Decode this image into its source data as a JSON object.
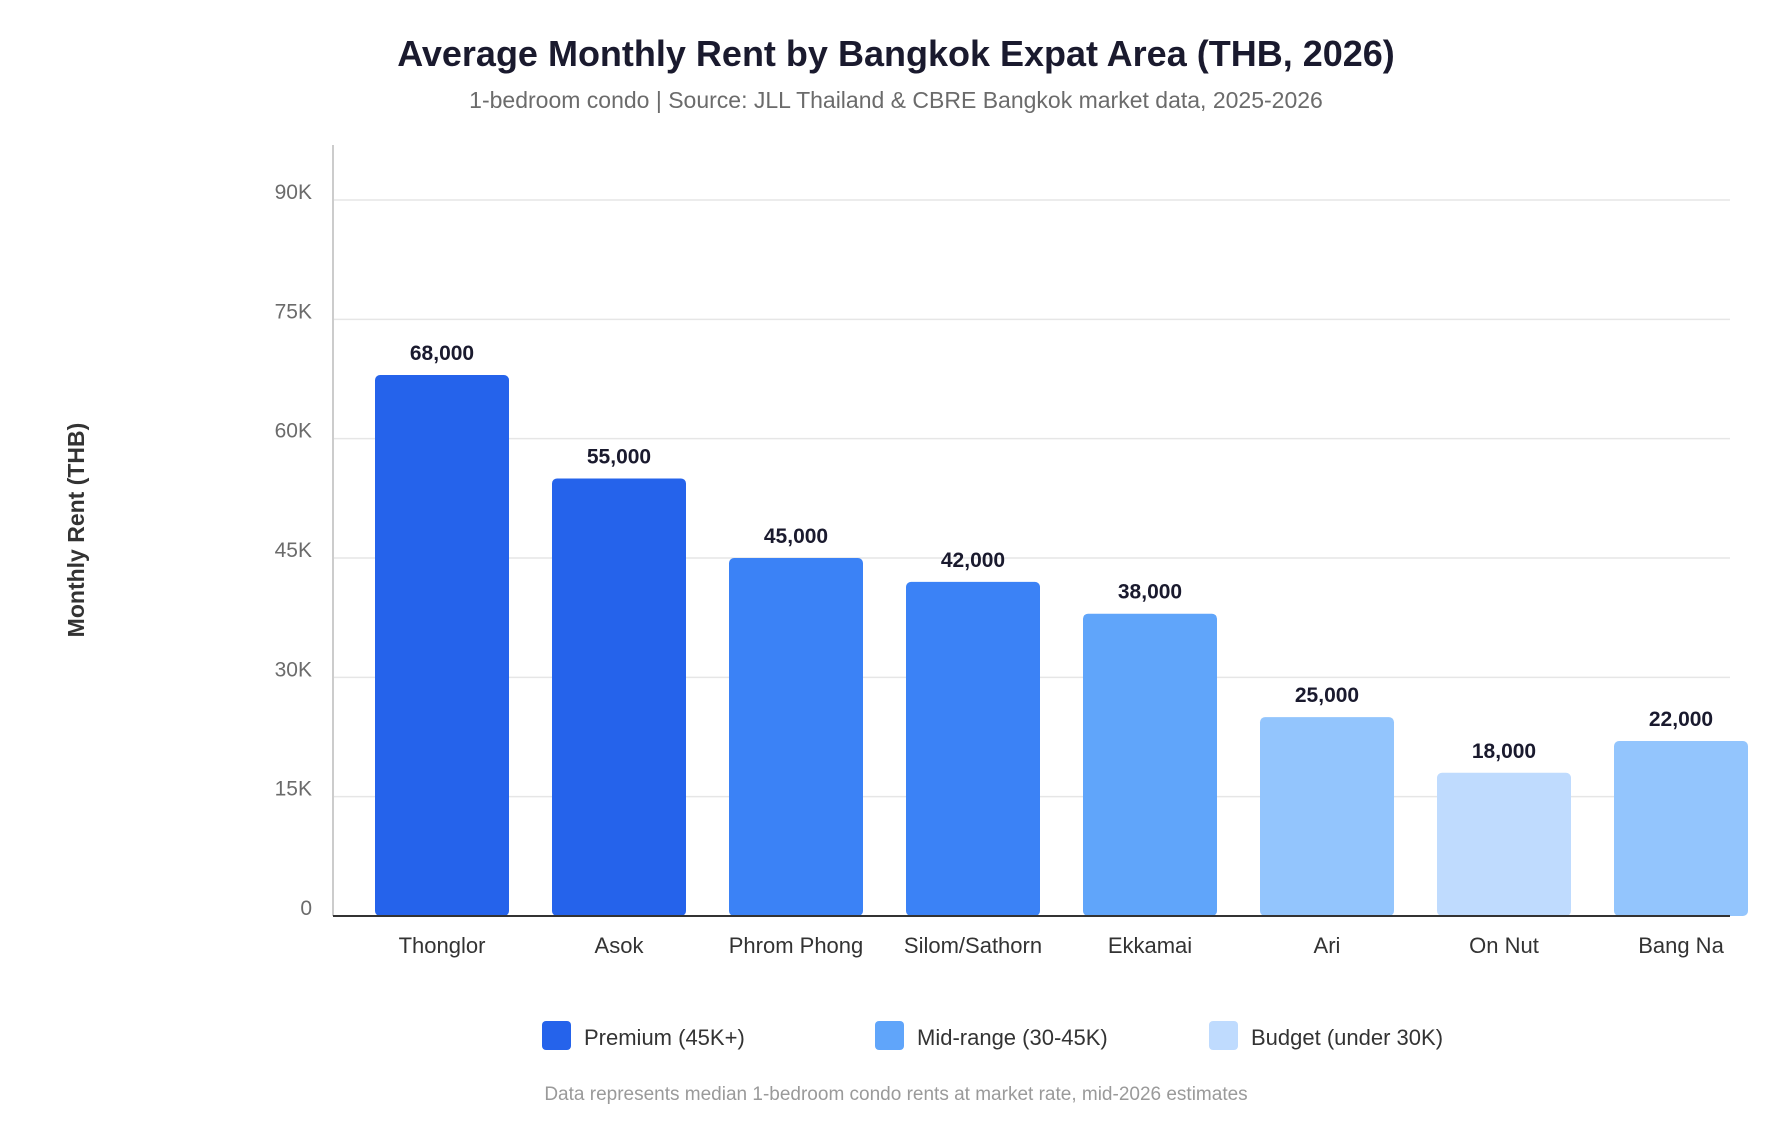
{
  "chart_data": {
    "type": "bar",
    "title": "Average Monthly Rent by Bangkok Expat Area (THB, 2026)",
    "subtitle": "1-bedroom condo | Source: JLL Thailand & CBRE Bangkok market data, 2025-2026",
    "xlabel": "",
    "ylabel": "Monthly Rent (THB)",
    "ylim": [
      0,
      90000
    ],
    "yticks": [
      0,
      15000,
      30000,
      45000,
      60000,
      75000,
      90000
    ],
    "ytick_labels": [
      "0",
      "15K",
      "30K",
      "45K",
      "60K",
      "75K",
      "90K"
    ],
    "grid": true,
    "categories": [
      "Thonglor",
      "Asok",
      "Phrom Phong",
      "Silom/Sathorn",
      "Ekkamai",
      "Ari",
      "On Nut",
      "Bang Na"
    ],
    "values": [
      68000,
      55000,
      45000,
      42000,
      38000,
      25000,
      18000,
      22000
    ],
    "value_labels": [
      "68,000",
      "55,000",
      "45,000",
      "42,000",
      "38,000",
      "25,000",
      "18,000",
      "22,000"
    ],
    "bar_colors": [
      "#2563eb",
      "#2563eb",
      "#3b82f6",
      "#3b82f6",
      "#60a5fa",
      "#93c5fd",
      "#bfdbfe",
      "#93c5fd"
    ],
    "legend": {
      "placement": "bottom",
      "items": [
        {
          "label": "Premium (45K+)",
          "color": "#2563eb"
        },
        {
          "label": "Mid-range (30-45K)",
          "color": "#60a5fa"
        },
        {
          "label": "Budget (under 30K)",
          "color": "#bfdbfe"
        }
      ]
    },
    "footnote": "Data represents median 1-bedroom condo rents at market rate, mid-2026 estimates"
  }
}
